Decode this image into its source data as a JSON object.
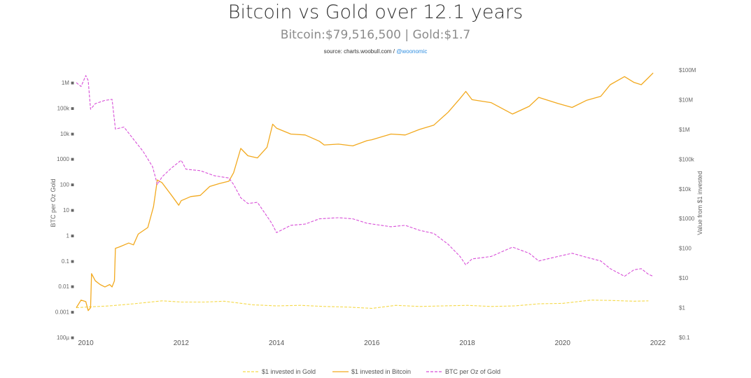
{
  "header": {
    "title": "Bitcoin vs Gold over 12.1 years",
    "subtitle": "Bitcoin:$79,516,500 | Gold:$1.7",
    "source_prefix": "source: charts.woobull.com / ",
    "source_handle": "@woonomic"
  },
  "colors": {
    "gold": "#f5d94a",
    "bitcoin": "#f2a91e",
    "ratio": "#d84fd8",
    "tick": "#666666"
  },
  "chart_data": {
    "type": "line",
    "title": "Bitcoin vs Gold over 12.1 years",
    "subtitle": "Bitcoin:$79,516,500 | Gold:$1.7",
    "x_axis": {
      "ticks": [
        "2010",
        "2012",
        "2014",
        "2016",
        "2018",
        "2020",
        "2022"
      ],
      "range": [
        2009.8,
        2022.0
      ]
    },
    "y_left": {
      "label": "BTC per Oz Gold",
      "scale": "log",
      "range": [
        0.0001,
        1000000
      ],
      "ticks": [
        {
          "v": 1000000,
          "label": "1M ■"
        },
        {
          "v": 100000,
          "label": "100k ■"
        },
        {
          "v": 10000,
          "label": "10k ■"
        },
        {
          "v": 1000,
          "label": "1000 ■"
        },
        {
          "v": 100,
          "label": "100 ■"
        },
        {
          "v": 10,
          "label": "10 ■"
        },
        {
          "v": 1,
          "label": "1 ■"
        },
        {
          "v": 0.1,
          "label": "0.1 ■"
        },
        {
          "v": 0.01,
          "label": "0.01 ■"
        },
        {
          "v": 0.001,
          "label": "0.001 ■"
        },
        {
          "v": 0.0001,
          "label": "100µ ■"
        }
      ]
    },
    "y_right": {
      "label": "Value from $1 invested",
      "scale": "log",
      "range": [
        0.1,
        100000000
      ],
      "ticks": [
        {
          "v": 100000000,
          "label": "$100M"
        },
        {
          "v": 10000000,
          "label": "$10M"
        },
        {
          "v": 1000000,
          "label": "$1M"
        },
        {
          "v": 100000,
          "label": "$100k"
        },
        {
          "v": 10000,
          "label": "$10k"
        },
        {
          "v": 1000,
          "label": "$1000"
        },
        {
          "v": 100,
          "label": "$100"
        },
        {
          "v": 10,
          "label": "$10"
        },
        {
          "v": 1,
          "label": "$1"
        },
        {
          "v": 0.1,
          "label": "$0.1"
        }
      ]
    },
    "series": [
      {
        "name": "$1 invested in Gold",
        "axis": "right",
        "style": "dashed",
        "color": "#f5d94a",
        "points": [
          [
            2009.8,
            1.0
          ],
          [
            2010.0,
            1.05
          ],
          [
            2010.5,
            1.15
          ],
          [
            2011.0,
            1.35
          ],
          [
            2011.6,
            1.7
          ],
          [
            2012.0,
            1.55
          ],
          [
            2012.5,
            1.55
          ],
          [
            2012.9,
            1.65
          ],
          [
            2013.5,
            1.25
          ],
          [
            2014.0,
            1.15
          ],
          [
            2014.5,
            1.2
          ],
          [
            2015.0,
            1.1
          ],
          [
            2015.5,
            1.05
          ],
          [
            2016.0,
            0.95
          ],
          [
            2016.5,
            1.2
          ],
          [
            2017.0,
            1.1
          ],
          [
            2017.5,
            1.15
          ],
          [
            2018.0,
            1.2
          ],
          [
            2018.5,
            1.1
          ],
          [
            2019.0,
            1.15
          ],
          [
            2019.5,
            1.35
          ],
          [
            2020.0,
            1.4
          ],
          [
            2020.6,
            1.8
          ],
          [
            2021.0,
            1.75
          ],
          [
            2021.5,
            1.65
          ],
          [
            2021.8,
            1.7
          ]
        ]
      },
      {
        "name": "$1 invested in Bitcoin",
        "axis": "right",
        "style": "solid",
        "color": "#f2a91e",
        "points": [
          [
            2009.8,
            1.0
          ],
          [
            2009.9,
            1.8
          ],
          [
            2010.0,
            1.6
          ],
          [
            2010.05,
            0.8
          ],
          [
            2010.1,
            1.0
          ],
          [
            2010.12,
            14
          ],
          [
            2010.2,
            8
          ],
          [
            2010.3,
            6
          ],
          [
            2010.4,
            5
          ],
          [
            2010.5,
            6
          ],
          [
            2010.55,
            5
          ],
          [
            2010.6,
            8
          ],
          [
            2010.62,
            100
          ],
          [
            2010.7,
            110
          ],
          [
            2010.9,
            150
          ],
          [
            2011.0,
            130
          ],
          [
            2011.1,
            300
          ],
          [
            2011.3,
            500
          ],
          [
            2011.42,
            2500
          ],
          [
            2011.5,
            20000
          ],
          [
            2011.6,
            16000
          ],
          [
            2011.8,
            6000
          ],
          [
            2011.95,
            2800
          ],
          [
            2012.0,
            4000
          ],
          [
            2012.2,
            5500
          ],
          [
            2012.4,
            6000
          ],
          [
            2012.6,
            12000
          ],
          [
            2012.8,
            15000
          ],
          [
            2013.0,
            18000
          ],
          [
            2013.1,
            35000
          ],
          [
            2013.25,
            230000
          ],
          [
            2013.4,
            130000
          ],
          [
            2013.6,
            110000
          ],
          [
            2013.8,
            250000
          ],
          [
            2013.92,
            1500000
          ],
          [
            2014.0,
            1100000
          ],
          [
            2014.3,
            700000
          ],
          [
            2014.6,
            650000
          ],
          [
            2014.9,
            400000
          ],
          [
            2015.0,
            300000
          ],
          [
            2015.3,
            320000
          ],
          [
            2015.6,
            280000
          ],
          [
            2015.9,
            420000
          ],
          [
            2016.0,
            450000
          ],
          [
            2016.4,
            700000
          ],
          [
            2016.7,
            650000
          ],
          [
            2017.0,
            1000000
          ],
          [
            2017.3,
            1400000
          ],
          [
            2017.6,
            3800000
          ],
          [
            2017.85,
            11000000
          ],
          [
            2017.97,
            19000000
          ],
          [
            2018.1,
            10000000
          ],
          [
            2018.5,
            8000000
          ],
          [
            2018.95,
            3300000
          ],
          [
            2019.3,
            6000000
          ],
          [
            2019.5,
            12000000
          ],
          [
            2019.9,
            7500000
          ],
          [
            2020.2,
            5500000
          ],
          [
            2020.5,
            9500000
          ],
          [
            2020.8,
            13000000
          ],
          [
            2021.0,
            32000000
          ],
          [
            2021.3,
            60000000
          ],
          [
            2021.5,
            38000000
          ],
          [
            2021.65,
            32000000
          ],
          [
            2021.8,
            55000000
          ],
          [
            2021.9,
            79516500
          ]
        ]
      },
      {
        "name": "BTC per Oz of Gold",
        "axis": "left",
        "style": "dashed",
        "color": "#d84fd8",
        "points": [
          [
            2009.8,
            1000000
          ],
          [
            2009.9,
            700000
          ],
          [
            2010.0,
            1900000
          ],
          [
            2010.05,
            1200000
          ],
          [
            2010.1,
            90000
          ],
          [
            2010.2,
            150000
          ],
          [
            2010.4,
            200000
          ],
          [
            2010.55,
            220000
          ],
          [
            2010.62,
            15000
          ],
          [
            2010.8,
            18000
          ],
          [
            2011.0,
            6000
          ],
          [
            2011.2,
            2000
          ],
          [
            2011.4,
            500
          ],
          [
            2011.5,
            100
          ],
          [
            2011.6,
            200
          ],
          [
            2011.8,
            450
          ],
          [
            2012.0,
            900
          ],
          [
            2012.1,
            400
          ],
          [
            2012.4,
            350
          ],
          [
            2012.7,
            220
          ],
          [
            2013.0,
            180
          ],
          [
            2013.1,
            100
          ],
          [
            2013.25,
            30
          ],
          [
            2013.4,
            18
          ],
          [
            2013.6,
            20
          ],
          [
            2013.9,
            3
          ],
          [
            2014.0,
            1.3
          ],
          [
            2014.3,
            2.5
          ],
          [
            2014.6,
            2.8
          ],
          [
            2014.9,
            4.5
          ],
          [
            2015.3,
            5
          ],
          [
            2015.6,
            4.5
          ],
          [
            2015.9,
            3
          ],
          [
            2016.4,
            2.2
          ],
          [
            2016.7,
            2.5
          ],
          [
            2017.0,
            1.6
          ],
          [
            2017.3,
            1.2
          ],
          [
            2017.6,
            0.45
          ],
          [
            2017.85,
            0.15
          ],
          [
            2017.97,
            0.07
          ],
          [
            2018.1,
            0.12
          ],
          [
            2018.5,
            0.15
          ],
          [
            2018.95,
            0.35
          ],
          [
            2019.3,
            0.2
          ],
          [
            2019.5,
            0.1
          ],
          [
            2019.9,
            0.15
          ],
          [
            2020.2,
            0.2
          ],
          [
            2020.5,
            0.14
          ],
          [
            2020.8,
            0.1
          ],
          [
            2021.0,
            0.05
          ],
          [
            2021.3,
            0.025
          ],
          [
            2021.5,
            0.045
          ],
          [
            2021.65,
            0.05
          ],
          [
            2021.8,
            0.03
          ],
          [
            2021.9,
            0.025
          ]
        ]
      }
    ],
    "legend_position": "bottom"
  }
}
